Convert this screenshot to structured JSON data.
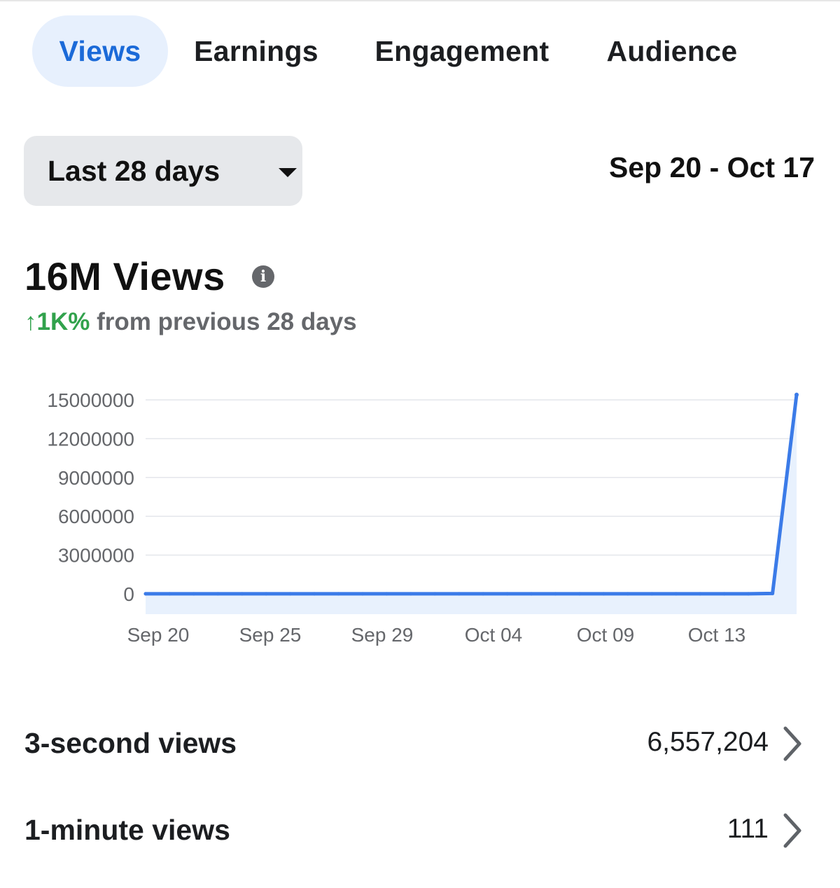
{
  "tabs": [
    {
      "label": "Views",
      "active": true
    },
    {
      "label": "Earnings",
      "active": false
    },
    {
      "label": "Engagement",
      "active": false
    },
    {
      "label": "Audience",
      "active": false
    }
  ],
  "filter": {
    "range_label": "Last 28 days",
    "dropdown_icon": "caret-down-icon"
  },
  "date_range": "Sep 20 - Oct 17",
  "summary": {
    "total": "16M Views",
    "info_icon": "info-icon",
    "delta_arrow": "↑",
    "delta_value": "1K%",
    "delta_text": "from previous 28 days",
    "colors": {
      "accent": "#1b6ad8",
      "positive": "#31a24c",
      "line": "#3b7be8",
      "fill": "#e8f1fd"
    }
  },
  "chart_data": {
    "type": "area",
    "y_ticks": [
      "15000000",
      "12000000",
      "9000000",
      "6000000",
      "3000000",
      "0"
    ],
    "y_tick_values": [
      15000000,
      12000000,
      9000000,
      6000000,
      3000000,
      0
    ],
    "ylim": [
      0,
      15000000
    ],
    "x_tick_labels": [
      "Sep 20",
      "Sep 25",
      "Sep 29",
      "Oct 04",
      "Oct 09",
      "Oct 13"
    ],
    "x": [
      "Sep 20",
      "Sep 21",
      "Sep 22",
      "Sep 23",
      "Sep 24",
      "Sep 25",
      "Sep 26",
      "Sep 27",
      "Sep 28",
      "Sep 29",
      "Sep 30",
      "Oct 01",
      "Oct 02",
      "Oct 03",
      "Oct 04",
      "Oct 05",
      "Oct 06",
      "Oct 07",
      "Oct 08",
      "Oct 09",
      "Oct 10",
      "Oct 11",
      "Oct 12",
      "Oct 13",
      "Oct 14",
      "Oct 15",
      "Oct 16",
      "Oct 17"
    ],
    "values": [
      5000,
      6000,
      4000,
      4000,
      5000,
      3000,
      4000,
      4000,
      5000,
      8000,
      6000,
      4000,
      5000,
      4000,
      4000,
      5000,
      6000,
      4000,
      3000,
      3000,
      4000,
      4000,
      5000,
      4000,
      5000,
      6000,
      30000,
      15400000
    ],
    "grid": true
  },
  "metrics": [
    {
      "label": "3-second views",
      "value": "6,557,204",
      "icon": "chevron-right-icon"
    },
    {
      "label": "1-minute views",
      "value": "111",
      "icon": "chevron-right-icon"
    }
  ]
}
